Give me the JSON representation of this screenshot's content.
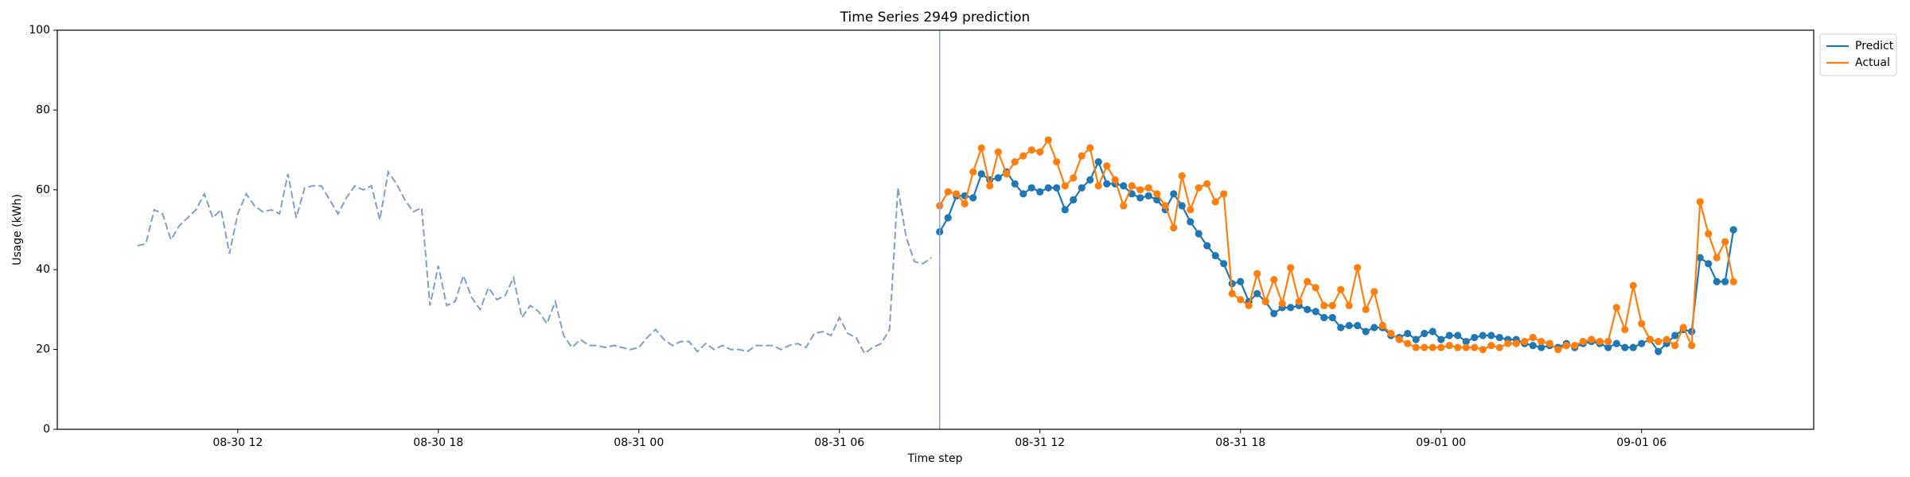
{
  "chart_data": {
    "type": "line",
    "title": "Time Series 2949 prediction",
    "x_label": "Time step",
    "y_label": "Usage (kWh)",
    "xlim": [
      6.6,
      59.15
    ],
    "ylim": [
      0,
      100
    ],
    "xticks": [
      {
        "value": 12,
        "label": "08-30 12"
      },
      {
        "value": 18,
        "label": "08-30 18"
      },
      {
        "value": 24,
        "label": "08-31 00"
      },
      {
        "value": 30,
        "label": "08-31 06"
      },
      {
        "value": 36,
        "label": "08-31 12"
      },
      {
        "value": 42,
        "label": "08-31 18"
      },
      {
        "value": 48,
        "label": "09-01 00"
      },
      {
        "value": 54,
        "label": "09-01 06"
      }
    ],
    "yticks": [
      0,
      20,
      40,
      60,
      80,
      100
    ],
    "vline": 33,
    "vline_color": "#8fa8d4",
    "legend": "upper right outside",
    "series": [
      {
        "color": "#7f9ec9",
        "style": "dashed",
        "markers": false,
        "x": [
          9,
          9.25,
          9.5,
          9.75,
          10,
          10.25,
          10.5,
          10.75,
          11,
          11.25,
          11.5,
          11.75,
          12,
          12.25,
          12.5,
          12.75,
          13,
          13.25,
          13.5,
          13.75,
          14,
          14.25,
          14.5,
          14.75,
          15,
          15.25,
          15.5,
          15.75,
          16,
          16.25,
          16.5,
          16.75,
          17,
          17.25,
          17.5,
          17.75,
          18,
          18.25,
          18.5,
          18.75,
          19,
          19.25,
          19.5,
          19.75,
          20,
          20.25,
          20.5,
          20.75,
          21,
          21.25,
          21.5,
          21.75,
          22,
          22.25,
          22.5,
          22.75,
          23,
          23.25,
          23.5,
          23.75,
          24,
          24.25,
          24.5,
          24.75,
          25,
          25.25,
          25.5,
          25.75,
          26,
          26.25,
          26.5,
          26.75,
          27,
          27.25,
          27.5,
          27.75,
          28,
          28.25,
          28.5,
          28.75,
          29,
          29.25,
          29.5,
          29.75,
          30,
          30.25,
          30.5,
          30.75,
          31,
          31.25,
          31.5,
          31.75,
          32,
          32.25,
          32.5,
          32.75
        ],
        "values": [
          46,
          46.5,
          55,
          54,
          47.5,
          51,
          53,
          55,
          59,
          53,
          55,
          44,
          54,
          59,
          56,
          54.5,
          55,
          54,
          64,
          53,
          60.5,
          61,
          61,
          57.5,
          54,
          58,
          61,
          60,
          61,
          52.5,
          64.5,
          61.5,
          57.5,
          54.5,
          55.5,
          31,
          41,
          31,
          32,
          38.5,
          33,
          30,
          35.5,
          32.5,
          33.5,
          38,
          28,
          31,
          29.5,
          26.5,
          32,
          23.5,
          20.5,
          22.5,
          21,
          21,
          20.5,
          21,
          20.5,
          20,
          20.5,
          23,
          25,
          22.5,
          21,
          22,
          22,
          19.5,
          21.5,
          20,
          21,
          20,
          20,
          19.5,
          21,
          21,
          21,
          20,
          21,
          21.5,
          20.5,
          24,
          24.5,
          23.5,
          28,
          24,
          23,
          19,
          20.5,
          21.5,
          25,
          60.5,
          48,
          42,
          41.5,
          43
        ]
      },
      {
        "name": "Predict",
        "color": "#1f77b4",
        "style": "solid",
        "markers": true,
        "x": [
          33,
          33.25,
          33.5,
          33.75,
          34,
          34.25,
          34.5,
          34.75,
          35,
          35.25,
          35.5,
          35.75,
          36,
          36.25,
          36.5,
          36.75,
          37,
          37.25,
          37.5,
          37.75,
          38,
          38.25,
          38.5,
          38.75,
          39,
          39.25,
          39.5,
          39.75,
          40,
          40.25,
          40.5,
          40.75,
          41,
          41.25,
          41.5,
          41.75,
          42,
          42.25,
          42.5,
          42.75,
          43,
          43.25,
          43.5,
          43.75,
          44,
          44.25,
          44.5,
          44.75,
          45,
          45.25,
          45.5,
          45.75,
          46,
          46.25,
          46.5,
          46.75,
          47,
          47.25,
          47.5,
          47.75,
          48,
          48.25,
          48.5,
          48.75,
          49,
          49.25,
          49.5,
          49.75,
          50,
          50.25,
          50.5,
          50.75,
          51,
          51.25,
          51.5,
          51.75,
          52,
          52.25,
          52.5,
          52.75,
          53,
          53.25,
          53.5,
          53.75,
          54,
          54.25,
          54.5,
          54.75,
          55,
          55.25,
          55.5,
          55.75,
          56,
          56.25,
          56.5,
          56.75
        ],
        "values": [
          49.5,
          53,
          58.5,
          58.5,
          58,
          64,
          62.5,
          63,
          64.5,
          61.5,
          59,
          60.5,
          59.5,
          60.5,
          60.5,
          55,
          57.5,
          60.5,
          62.5,
          67,
          61.5,
          61.5,
          61,
          59,
          58,
          58.5,
          57.5,
          55,
          59,
          56,
          52,
          49,
          46,
          43.5,
          41.5,
          36.5,
          37,
          32,
          34,
          32,
          29,
          30.5,
          30.5,
          31,
          30,
          29.5,
          28,
          28,
          25.5,
          26,
          26,
          24.5,
          25.5,
          25.5,
          23.5,
          23,
          24,
          22.5,
          24,
          24.5,
          22.5,
          23.5,
          23.5,
          22,
          23,
          23.5,
          23.5,
          23,
          22.5,
          22.5,
          21.5,
          21,
          20.5,
          21,
          20.5,
          21.5,
          20.5,
          21.5,
          22,
          21.5,
          20.5,
          21.5,
          20.5,
          20.5,
          21.5,
          22.5,
          19.5,
          21.5,
          23.5,
          25,
          24.5,
          43,
          41.5,
          37,
          37,
          50
        ]
      },
      {
        "name": "Actual",
        "color": "#ff7f0e",
        "style": "solid",
        "markers": true,
        "x": [
          33,
          33.25,
          33.5,
          33.75,
          34,
          34.25,
          34.5,
          34.75,
          35,
          35.25,
          35.5,
          35.75,
          36,
          36.25,
          36.5,
          36.75,
          37,
          37.25,
          37.5,
          37.75,
          38,
          38.25,
          38.5,
          38.75,
          39,
          39.25,
          39.5,
          39.75,
          40,
          40.25,
          40.5,
          40.75,
          41,
          41.25,
          41.5,
          41.75,
          42,
          42.25,
          42.5,
          42.75,
          43,
          43.25,
          43.5,
          43.75,
          44,
          44.25,
          44.5,
          44.75,
          45,
          45.25,
          45.5,
          45.75,
          46,
          46.25,
          46.5,
          46.75,
          47,
          47.25,
          47.5,
          47.75,
          48,
          48.25,
          48.5,
          48.75,
          49,
          49.25,
          49.5,
          49.75,
          50,
          50.25,
          50.5,
          50.75,
          51,
          51.25,
          51.5,
          51.75,
          52,
          52.25,
          52.5,
          52.75,
          53,
          53.25,
          53.5,
          53.75,
          54,
          54.25,
          54.5,
          54.75,
          55,
          55.25,
          55.5,
          55.75,
          56,
          56.25,
          56.5,
          56.75
        ],
        "values": [
          56,
          59.5,
          59,
          56.5,
          64.5,
          70.5,
          61,
          69.5,
          64,
          67,
          68.5,
          70,
          69.5,
          72.5,
          67,
          61,
          63,
          68.5,
          70.5,
          61,
          66,
          62.5,
          56,
          61,
          60,
          60.5,
          59,
          56,
          50.5,
          63.5,
          55,
          60.5,
          61.5,
          57,
          59,
          34,
          32.5,
          31,
          39,
          32,
          37.5,
          31.5,
          40.5,
          32,
          37,
          35.5,
          31,
          31,
          35,
          31,
          40.5,
          30,
          34.5,
          26,
          24,
          22.5,
          21.5,
          20.5,
          20.5,
          20.5,
          20.5,
          21,
          20.5,
          20.5,
          20.5,
          20,
          21,
          20.5,
          21.5,
          21.5,
          22,
          23,
          22,
          21.5,
          20,
          21,
          21,
          22,
          22.5,
          22,
          22,
          30.5,
          25,
          36,
          26.5,
          22.5,
          22,
          22.5,
          21,
          25.5,
          21,
          57,
          49,
          43,
          47,
          37
        ]
      }
    ]
  }
}
